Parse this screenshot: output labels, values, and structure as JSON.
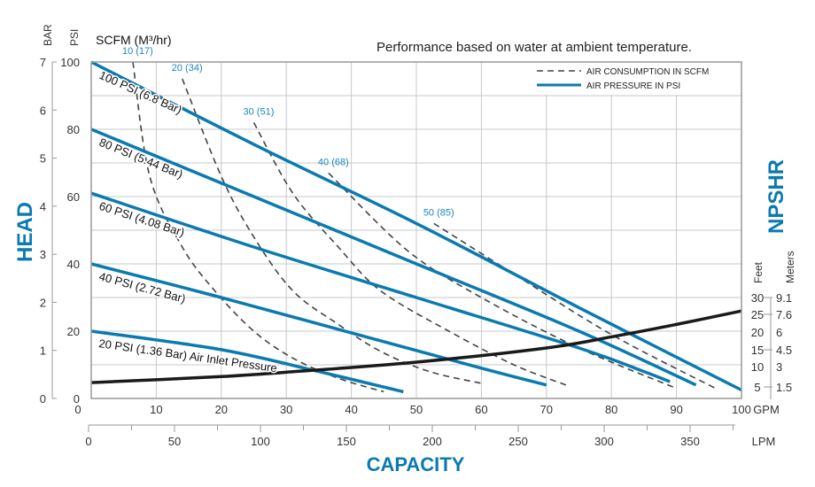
{
  "chart_data": {
    "type": "line",
    "title": "Performance based on water at ambient temperature.",
    "xlabel": "CAPACITY",
    "ylabel": "HEAD",
    "y2label": "NPSHR",
    "x_unit": "GPM",
    "x2_unit": "LPM",
    "y_unit_psi": "PSI",
    "y_unit_bar": "BAR",
    "scfm_label": "SCFM (M³/hr)",
    "y2_unit_feet": "Feet",
    "y2_unit_meters": "Meters",
    "xlim": [
      0,
      100
    ],
    "ylim": [
      0,
      100
    ],
    "x_ticks": [
      "0",
      "10",
      "20",
      "30",
      "40",
      "50",
      "60",
      "70",
      "80",
      "90",
      "100"
    ],
    "x2_ticks": [
      "0",
      "50",
      "100",
      "150",
      "200",
      "250",
      "300",
      "350"
    ],
    "psi_ticks": [
      "0",
      "20",
      "40",
      "60",
      "80",
      "100"
    ],
    "bar_ticks": [
      "0",
      "1",
      "2",
      "3",
      "4",
      "5",
      "6",
      "7"
    ],
    "feet_ticks": [
      "5",
      "10",
      "15",
      "20",
      "25",
      "30"
    ],
    "meter_ticks": [
      "1.5",
      "3",
      "4.5",
      "6",
      "7.6",
      "9.1"
    ],
    "grid": true,
    "legend": {
      "position": "top-right",
      "items": [
        "AIR CONSUMPTION IN SCFM",
        "AIR PRESSURE IN PSI"
      ]
    },
    "colors": {
      "pressure": "#0a7ab0",
      "air": "#444444",
      "npshr": "#1a1a1a",
      "label_blue": "#1a86c0"
    },
    "pressure_series": [
      {
        "name": "100 PSI (6.8 Bar)",
        "points": [
          [
            0,
            100
          ],
          [
            25,
            75.5
          ],
          [
            50,
            52
          ],
          [
            75,
            27
          ],
          [
            100,
            2.5
          ]
        ]
      },
      {
        "name": "80 PSI (5.44 Bar)",
        "points": [
          [
            0,
            80
          ],
          [
            25,
            60
          ],
          [
            50,
            40
          ],
          [
            75,
            20
          ],
          [
            93,
            4
          ]
        ]
      },
      {
        "name": "60 PSI (4.08 Bar)",
        "points": [
          [
            0,
            61
          ],
          [
            25,
            45
          ],
          [
            50,
            30
          ],
          [
            75,
            15
          ],
          [
            85,
            8
          ],
          [
            89,
            5
          ]
        ]
      },
      {
        "name": "40 PSI (2.72 Bar)",
        "points": [
          [
            0,
            40
          ],
          [
            20,
            30
          ],
          [
            40,
            19.5
          ],
          [
            60,
            9
          ],
          [
            70,
            4
          ]
        ]
      },
      {
        "name": "20 PSI (1.36 Bar) Air Inlet Pressure",
        "points": [
          [
            0,
            20
          ],
          [
            20,
            14.5
          ],
          [
            35,
            8
          ],
          [
            48,
            2
          ]
        ]
      }
    ],
    "air_series": [
      {
        "name": "10 (17)",
        "points": [
          [
            6.4,
            100
          ],
          [
            9,
            66
          ],
          [
            14,
            45
          ],
          [
            19,
            32
          ],
          [
            25,
            20
          ],
          [
            31,
            12
          ],
          [
            38,
            6
          ],
          [
            45,
            2
          ]
        ]
      },
      {
        "name": "20 (34)",
        "points": [
          [
            14,
            95
          ],
          [
            20,
            66
          ],
          [
            25,
            48
          ],
          [
            31,
            32
          ],
          [
            38,
            22
          ],
          [
            44.5,
            14
          ],
          [
            52,
            8
          ],
          [
            60,
            4.5
          ]
        ]
      },
      {
        "name": "30 (51)",
        "points": [
          [
            25,
            82
          ],
          [
            31,
            61
          ],
          [
            38,
            45
          ],
          [
            44.5,
            32
          ],
          [
            55,
            20
          ],
          [
            65,
            10
          ],
          [
            73,
            4
          ]
        ]
      },
      {
        "name": "40 (68)",
        "points": [
          [
            36.5,
            67
          ],
          [
            48.6,
            44
          ],
          [
            60,
            30
          ],
          [
            75,
            15
          ],
          [
            90,
            3
          ]
        ]
      },
      {
        "name": "50 (85)",
        "points": [
          [
            52.7,
            52
          ],
          [
            65,
            37
          ],
          [
            80,
            19
          ],
          [
            96,
            3
          ]
        ]
      }
    ],
    "npshr_series": {
      "name": "NPSHR",
      "unit": "feet",
      "points": [
        [
          0,
          4.7
        ],
        [
          20,
          6.5
        ],
        [
          30,
          7.8
        ],
        [
          50,
          10.8
        ],
        [
          70,
          15
        ],
        [
          80,
          18.3
        ],
        [
          90,
          22
        ],
        [
          100,
          26
        ]
      ]
    }
  }
}
